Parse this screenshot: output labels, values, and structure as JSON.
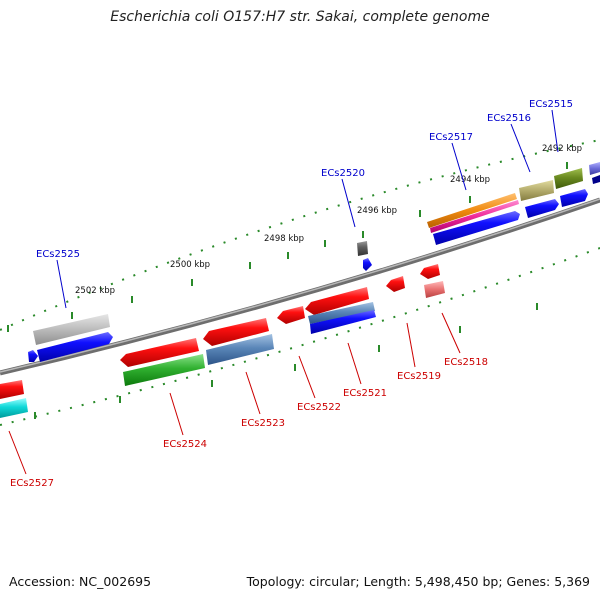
{
  "title": "Escherichia coli O157:H7 str. Sakai, complete genome",
  "footer": {
    "accession": "Accession: NC_002695",
    "summary": "Topology: circular; Length: 5,498,450 bp; Genes: 5,369"
  },
  "scale_labels": [
    "2492 kbp",
    "2494 kbp",
    "2496 kbp",
    "2498 kbp",
    "2500 kbp",
    "2502 kbp"
  ],
  "genes_forward": [
    {
      "name": "ECs2515",
      "color": "#0000cc"
    },
    {
      "name": "ECs2516",
      "color": "#0000cc"
    },
    {
      "name": "ECs2517",
      "color": "#0000cc"
    },
    {
      "name": "ECs2520",
      "color": "#0000cc"
    },
    {
      "name": "ECs2525",
      "color": "#0000cc"
    }
  ],
  "genes_reverse": [
    {
      "name": "ECs2518",
      "color": "#cc0000"
    },
    {
      "name": "ECs2519",
      "color": "#cc0000"
    },
    {
      "name": "ECs2521",
      "color": "#cc0000"
    },
    {
      "name": "ECs2522",
      "color": "#cc0000"
    },
    {
      "name": "ECs2523",
      "color": "#cc0000"
    },
    {
      "name": "ECs2524",
      "color": "#cc0000"
    },
    {
      "name": "ECs2527",
      "color": "#cc0000"
    }
  ],
  "colors": {
    "backbone": "#888888",
    "tick": "#2a8a2a",
    "cds_forward": "#0000ff",
    "cds_reverse": "#ff0000"
  }
}
